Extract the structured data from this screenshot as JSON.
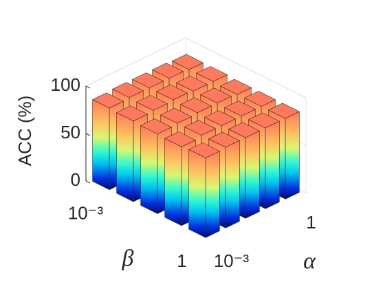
{
  "chart_data": {
    "type": "bar3d",
    "zlabel": "ACC (%)",
    "xlabel": "α",
    "ylabel": "β",
    "x_categories": [
      "10⁻³",
      null,
      null,
      null,
      "1"
    ],
    "y_categories": [
      "10⁻³",
      null,
      null,
      null,
      "1"
    ],
    "values": [
      [
        86,
        87,
        87,
        87,
        86
      ],
      [
        85,
        86,
        87,
        86,
        86
      ],
      [
        84,
        85,
        86,
        86,
        85
      ],
      [
        83,
        85,
        85,
        85,
        85
      ],
      [
        84,
        85,
        85,
        85,
        85
      ]
    ],
    "zlim": [
      0,
      100
    ],
    "zticks": [
      0,
      50,
      100
    ],
    "grid": true
  }
}
